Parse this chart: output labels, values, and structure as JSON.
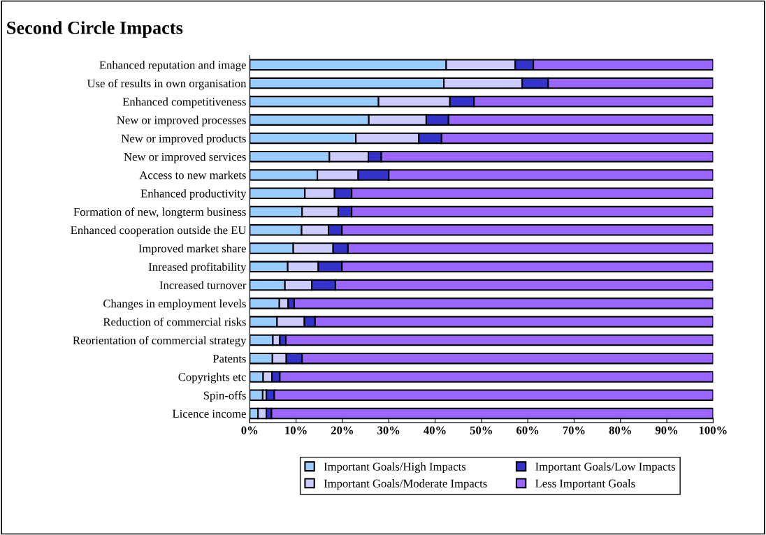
{
  "chart_data": {
    "type": "bar",
    "orientation": "horizontal",
    "stacked": true,
    "title": "Second Circle Impacts",
    "categories": [
      "Enhanced reputation and image",
      "Use of results in own organisation",
      "Enhanced competitiveness",
      "New or improved processes",
      "New or improved products",
      "New or improved services",
      "Access to new markets",
      "Enhanced productivity",
      "Formation of new, longterm business",
      "Enhanced cooperation outside the EU",
      "Improved market share",
      "Inreased profitability",
      "Increased turnover",
      "Changes in employment levels",
      "Reduction of commercial risks",
      "Reorientation of commercial strategy",
      "Patents",
      "Copyrights etc",
      "Spin-offs",
      "Licence income"
    ],
    "series": [
      {
        "name": "Important Goals/High Impacts",
        "color": "#99ccff",
        "values": [
          42.4,
          41.9,
          27.8,
          25.7,
          22.9,
          17.2,
          14.6,
          11.9,
          11.3,
          11.2,
          9.4,
          8.2,
          7.6,
          6.4,
          5.9,
          5.0,
          4.9,
          2.9,
          2.8,
          1.8
        ]
      },
      {
        "name": "Important Goals/Moderate Impacts",
        "color": "#ccccff",
        "values": [
          14.9,
          16.9,
          15.4,
          12.4,
          13.6,
          8.4,
          8.8,
          6.4,
          7.8,
          5.8,
          8.6,
          6.6,
          5.8,
          1.9,
          5.9,
          1.5,
          3.0,
          1.9,
          0.8,
          1.8
        ]
      },
      {
        "name": "Important Goals/Low Impacts",
        "color": "#3333cc",
        "values": [
          3.9,
          5.6,
          5.2,
          4.8,
          4.9,
          2.8,
          6.6,
          3.7,
          2.9,
          2.9,
          3.2,
          5.1,
          5.1,
          1.3,
          2.3,
          1.3,
          3.4,
          1.7,
          1.7,
          1.1
        ]
      },
      {
        "name": "Less Important Goals",
        "color": "#9966ff",
        "values": [
          38.8,
          35.6,
          51.6,
          57.1,
          58.6,
          71.6,
          70.0,
          78.0,
          78.0,
          80.1,
          78.8,
          80.1,
          81.5,
          90.4,
          85.9,
          92.2,
          88.7,
          93.5,
          94.7,
          95.3
        ]
      }
    ],
    "xlim": [
      0,
      100
    ],
    "xticks": [
      {
        "value": 0,
        "label": "0%"
      },
      {
        "value": 10,
        "label": "10%"
      },
      {
        "value": 20,
        "label": "20%"
      },
      {
        "value": 30,
        "label": "30%"
      },
      {
        "value": 40,
        "label": "40%"
      },
      {
        "value": 50,
        "label": "50%"
      },
      {
        "value": 60,
        "label": "60%"
      },
      {
        "value": 70,
        "label": "70%"
      },
      {
        "value": 80,
        "label": "80%"
      },
      {
        "value": 90,
        "label": "90%"
      },
      {
        "value": 100,
        "label": "100%"
      }
    ],
    "grid": false,
    "legend": "bottom"
  }
}
